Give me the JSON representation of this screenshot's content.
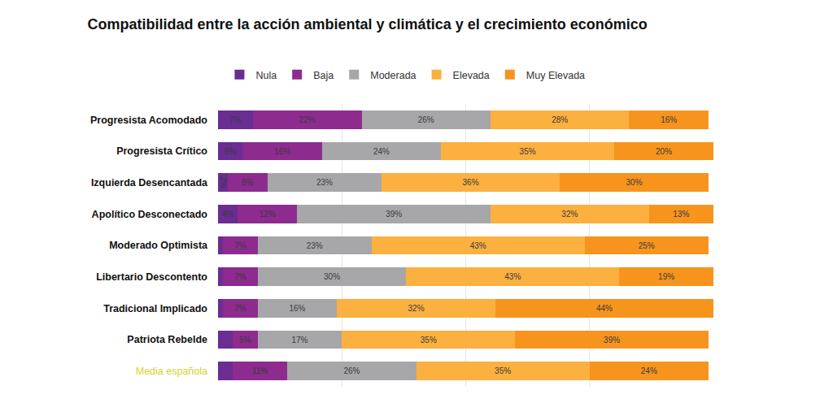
{
  "chart_data": {
    "type": "bar",
    "title": "Compatibilidad entre la acción ambiental y climática y el crecimiento económico",
    "orientation": "horizontal",
    "stacked": true,
    "data_labels": true,
    "tick_labels": "y",
    "grid": true,
    "legend": "top",
    "xlim": [
      0,
      100
    ],
    "xticks": [
      0,
      25,
      50,
      75,
      100
    ],
    "categories": [
      "Progresista Acomodado",
      "Progresista Crítico",
      "Izquierda Desencantada",
      "Apolítico Desconectado",
      "Moderado Optimista",
      "Libertario Descontento",
      "Tradicional Implicado",
      "Patriota Rebelde",
      "Media española"
    ],
    "series": [
      {
        "name": "Nula",
        "color": "#6a2d91",
        "values": [
          7,
          5,
          2,
          4,
          1,
          1,
          1,
          3,
          3
        ],
        "value_labels": [
          "7%",
          "5%",
          "2%",
          "4%",
          null,
          null,
          null,
          null,
          null
        ]
      },
      {
        "name": "Baja",
        "color": "#8d2b8f",
        "values": [
          22,
          16,
          8,
          12,
          7,
          7,
          7,
          5,
          11
        ],
        "value_labels": [
          "22%",
          "16%",
          "8%",
          "12%",
          "7%",
          "7%",
          "7%",
          "5%",
          "11%"
        ]
      },
      {
        "name": "Moderada",
        "color": "#a7a7a9",
        "values": [
          26,
          24,
          23,
          39,
          23,
          30,
          16,
          17,
          26
        ],
        "value_labels": [
          "26%",
          "24%",
          "23%",
          "39%",
          "23%",
          "30%",
          "16%",
          "17%",
          "26%"
        ]
      },
      {
        "name": "Elevada",
        "color": "#fbb03f",
        "values": [
          28,
          35,
          36,
          32,
          43,
          43,
          32,
          35,
          35
        ],
        "value_labels": [
          "28%",
          "35%",
          "36%",
          "32%",
          "43%",
          "43%",
          "32%",
          "35%",
          "35%"
        ]
      },
      {
        "name": "Muy Elevada",
        "color": "#f7941e",
        "values": [
          16,
          20,
          30,
          13,
          25,
          19,
          44,
          39,
          24
        ],
        "value_labels": [
          "16%",
          "20%",
          "30%",
          "13%",
          "25%",
          "19%",
          "44%",
          "39%",
          "24%"
        ]
      }
    ]
  }
}
